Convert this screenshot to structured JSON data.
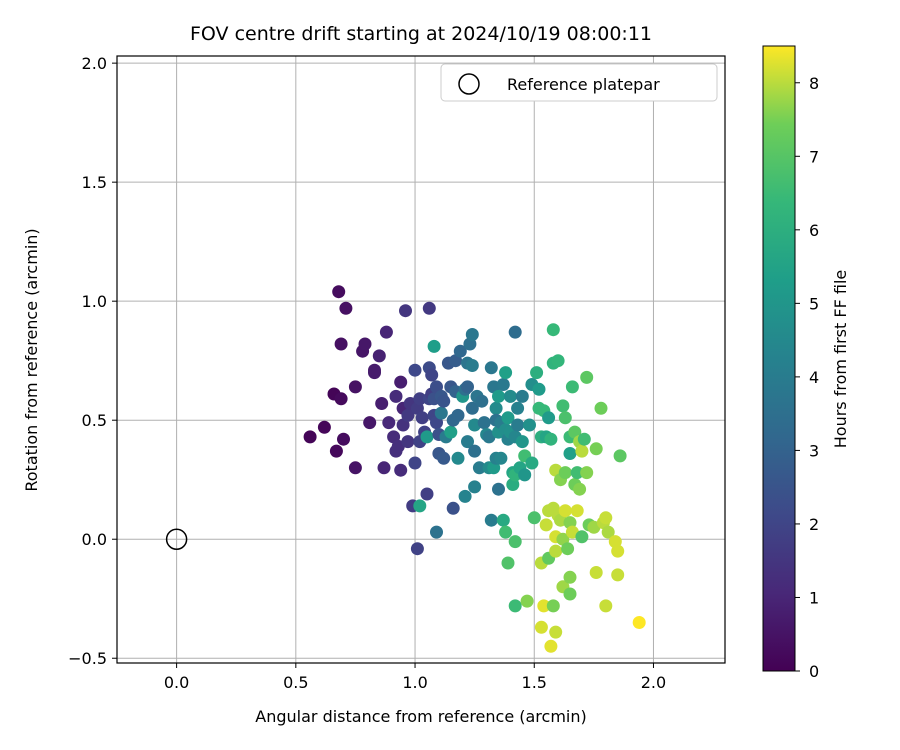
{
  "chart_data": {
    "type": "scatter",
    "title": "FOV centre drift starting at 2024/10/19 08:00:11",
    "xlabel": "Angular distance from reference (arcmin)",
    "ylabel": "Rotation from reference (arcmin)",
    "xlim": [
      -0.25,
      2.3
    ],
    "ylim": [
      -0.52,
      2.03
    ],
    "xticks": [
      0.0,
      0.5,
      1.0,
      1.5,
      2.0
    ],
    "xtick_labels": [
      "0.0",
      "0.5",
      "1.0",
      "1.5",
      "2.0"
    ],
    "yticks": [
      -0.5,
      0.0,
      0.5,
      1.0,
      1.5,
      2.0
    ],
    "ytick_labels": [
      "−0.5",
      "0.0",
      "0.5",
      "1.0",
      "1.5",
      "2.0"
    ],
    "grid": true,
    "legend": {
      "placement": "top-right",
      "entries": [
        "Reference platepar"
      ]
    },
    "reference_point": {
      "x": 0.0,
      "y": 0.0,
      "marker": "open-circle",
      "label": "Reference platepar"
    },
    "colorbar": {
      "label": "Hours from first FF file",
      "range": [
        0,
        8.5
      ],
      "ticks": [
        0,
        1,
        2,
        3,
        4,
        5,
        6,
        7,
        8
      ],
      "tick_labels": [
        "0",
        "1",
        "2",
        "3",
        "4",
        "5",
        "6",
        "7",
        "8"
      ],
      "colormap": "viridis"
    },
    "points": [
      [
        0.56,
        0.43,
        0.1
      ],
      [
        0.62,
        0.47,
        0.15
      ],
      [
        0.66,
        0.61,
        0.1
      ],
      [
        0.67,
        0.37,
        0.2
      ],
      [
        0.68,
        1.04,
        0.3
      ],
      [
        0.69,
        0.59,
        0.25
      ],
      [
        0.69,
        0.82,
        0.4
      ],
      [
        0.7,
        0.42,
        0.3
      ],
      [
        0.71,
        0.97,
        0.4
      ],
      [
        0.75,
        0.64,
        0.45
      ],
      [
        0.75,
        0.3,
        0.5
      ],
      [
        0.78,
        0.79,
        0.55
      ],
      [
        0.79,
        0.82,
        0.6
      ],
      [
        0.81,
        0.49,
        0.6
      ],
      [
        0.83,
        0.7,
        0.7
      ],
      [
        0.83,
        0.71,
        0.7
      ],
      [
        0.85,
        0.77,
        0.9
      ],
      [
        0.86,
        0.57,
        0.8
      ],
      [
        0.87,
        0.3,
        1.0
      ],
      [
        0.88,
        0.87,
        1.0
      ],
      [
        0.89,
        0.49,
        1.1
      ],
      [
        0.91,
        0.43,
        1.2
      ],
      [
        0.92,
        0.6,
        1.2
      ],
      [
        0.92,
        0.37,
        1.3
      ],
      [
        0.93,
        0.39,
        1.3
      ],
      [
        0.94,
        0.66,
        0.8
      ],
      [
        0.94,
        0.29,
        1.2
      ],
      [
        0.95,
        0.55,
        1.0
      ],
      [
        0.95,
        0.48,
        1.4
      ],
      [
        0.96,
        0.96,
        1.5
      ],
      [
        0.97,
        0.52,
        1.6
      ],
      [
        0.97,
        0.41,
        1.5
      ],
      [
        0.98,
        0.57,
        1.5
      ],
      [
        0.99,
        0.14,
        1.7
      ],
      [
        1.0,
        0.32,
        2.0
      ],
      [
        1.0,
        0.71,
        2.1
      ],
      [
        1.01,
        -0.04,
        1.9
      ],
      [
        1.01,
        0.55,
        1.7
      ],
      [
        1.02,
        0.59,
        1.8
      ],
      [
        1.02,
        0.41,
        1.9
      ],
      [
        1.02,
        0.14,
        5.6
      ],
      [
        1.03,
        0.51,
        1.8
      ],
      [
        1.04,
        0.45,
        1.9
      ],
      [
        1.05,
        0.19,
        1.8
      ],
      [
        1.05,
        0.43,
        5.2
      ],
      [
        1.06,
        0.59,
        2.0
      ],
      [
        1.06,
        0.72,
        2.2
      ],
      [
        1.06,
        0.97,
        1.6
      ],
      [
        1.07,
        0.69,
        2.0
      ],
      [
        1.07,
        0.61,
        1.8
      ],
      [
        1.08,
        0.81,
        5.3
      ],
      [
        1.08,
        0.52,
        2.0
      ],
      [
        1.08,
        0.59,
        2.4
      ],
      [
        1.09,
        0.64,
        2.3
      ],
      [
        1.09,
        0.49,
        2.1
      ],
      [
        1.09,
        0.03,
        3.6
      ],
      [
        1.1,
        0.44,
        2.4
      ],
      [
        1.1,
        0.36,
        2.6
      ],
      [
        1.11,
        0.53,
        3.8
      ],
      [
        1.11,
        0.6,
        2.6
      ],
      [
        1.12,
        0.34,
        2.7
      ],
      [
        1.12,
        0.58,
        2.5
      ],
      [
        1.13,
        0.43,
        4.0
      ],
      [
        1.14,
        0.74,
        2.6
      ],
      [
        1.15,
        0.64,
        2.6
      ],
      [
        1.15,
        0.45,
        5.4
      ],
      [
        1.16,
        0.5,
        3.2
      ],
      [
        1.16,
        0.13,
        2.4
      ],
      [
        1.17,
        0.75,
        2.8
      ],
      [
        1.17,
        0.62,
        3.0
      ],
      [
        1.18,
        0.52,
        3.2
      ],
      [
        1.18,
        0.34,
        4.5
      ],
      [
        1.19,
        0.79,
        3.2
      ],
      [
        1.2,
        0.6,
        5.0
      ],
      [
        1.21,
        0.63,
        3.5
      ],
      [
        1.21,
        0.18,
        4.3
      ],
      [
        1.22,
        0.41,
        4.0
      ],
      [
        1.22,
        0.64,
        3.0
      ],
      [
        1.22,
        0.74,
        3.7
      ],
      [
        1.23,
        0.82,
        3.5
      ],
      [
        1.24,
        0.55,
        3.4
      ],
      [
        1.24,
        0.73,
        4.0
      ],
      [
        1.24,
        0.86,
        3.8
      ],
      [
        1.25,
        0.37,
        3.5
      ],
      [
        1.25,
        0.48,
        4.5
      ],
      [
        1.25,
        0.22,
        4.2
      ],
      [
        1.26,
        0.6,
        3.7
      ],
      [
        1.27,
        0.3,
        4.0
      ],
      [
        1.28,
        0.58,
        3.5
      ],
      [
        1.29,
        0.49,
        3.6
      ],
      [
        1.3,
        0.44,
        4.4
      ],
      [
        1.31,
        0.3,
        4.6
      ],
      [
        1.31,
        0.43,
        3.9
      ],
      [
        1.32,
        0.72,
        3.8
      ],
      [
        1.32,
        0.08,
        4.0
      ],
      [
        1.33,
        0.64,
        3.8
      ],
      [
        1.33,
        0.3,
        5.2
      ],
      [
        1.34,
        0.34,
        4.2
      ],
      [
        1.34,
        0.55,
        4.6
      ],
      [
        1.34,
        0.5,
        3.6
      ],
      [
        1.35,
        0.6,
        5.2
      ],
      [
        1.35,
        0.45,
        4.8
      ],
      [
        1.35,
        0.21,
        3.6
      ],
      [
        1.36,
        0.49,
        4.0
      ],
      [
        1.36,
        0.34,
        4.4
      ],
      [
        1.37,
        0.08,
        5.8
      ],
      [
        1.37,
        0.65,
        3.9
      ],
      [
        1.38,
        0.7,
        5.4
      ],
      [
        1.38,
        0.46,
        4.7
      ],
      [
        1.38,
        0.03,
        6.6
      ],
      [
        1.39,
        0.42,
        4.2
      ],
      [
        1.39,
        -0.1,
        6.9
      ],
      [
        1.39,
        0.51,
        5.2
      ],
      [
        1.4,
        0.6,
        4.6
      ],
      [
        1.4,
        0.45,
        4.8
      ],
      [
        1.41,
        0.28,
        5.6
      ],
      [
        1.41,
        0.23,
        5.9
      ],
      [
        1.42,
        0.27,
        6.2
      ],
      [
        1.42,
        -0.01,
        6.8
      ],
      [
        1.42,
        -0.28,
        6.5
      ],
      [
        1.42,
        0.43,
        4.4
      ],
      [
        1.42,
        0.87,
        3.4
      ],
      [
        1.43,
        0.48,
        4.0
      ],
      [
        1.43,
        0.55,
        4.2
      ],
      [
        1.44,
        0.3,
        5.6
      ],
      [
        1.45,
        0.6,
        4.0
      ],
      [
        1.45,
        0.41,
        5.0
      ],
      [
        1.46,
        0.35,
        6.6
      ],
      [
        1.46,
        0.27,
        5.0
      ],
      [
        1.47,
        -0.26,
        7.6
      ],
      [
        1.48,
        0.48,
        4.8
      ],
      [
        1.49,
        0.65,
        4.7
      ],
      [
        1.49,
        0.32,
        5.8
      ],
      [
        1.5,
        0.09,
        6.8
      ],
      [
        1.51,
        0.7,
        6.0
      ],
      [
        1.52,
        0.55,
        6.4
      ],
      [
        1.52,
        0.63,
        5.2
      ],
      [
        1.53,
        0.43,
        6.0
      ],
      [
        1.53,
        -0.1,
        8.0
      ],
      [
        1.53,
        -0.37,
        8.2
      ],
      [
        1.54,
        0.54,
        6.4
      ],
      [
        1.54,
        -0.28,
        8.3
      ],
      [
        1.55,
        0.06,
        8.1
      ],
      [
        1.55,
        0.43,
        5.6
      ],
      [
        1.56,
        0.12,
        8.0
      ],
      [
        1.56,
        0.51,
        5.2
      ],
      [
        1.56,
        -0.08,
        7.2
      ],
      [
        1.57,
        0.42,
        6.2
      ],
      [
        1.57,
        -0.45,
        8.3
      ],
      [
        1.58,
        0.13,
        8.0
      ],
      [
        1.58,
        -0.28,
        7.5
      ],
      [
        1.58,
        0.88,
        6.4
      ],
      [
        1.58,
        0.74,
        6.2
      ],
      [
        1.59,
        0.01,
        8.2
      ],
      [
        1.59,
        -0.05,
        8.0
      ],
      [
        1.59,
        0.29,
        8.0
      ],
      [
        1.59,
        -0.39,
        8.1
      ],
      [
        1.6,
        0.1,
        8.0
      ],
      [
        1.6,
        0.75,
        6.3
      ],
      [
        1.61,
        0.25,
        7.6
      ],
      [
        1.61,
        0.08,
        7.9
      ],
      [
        1.62,
        -0.2,
        7.8
      ],
      [
        1.62,
        0.0,
        7.7
      ],
      [
        1.62,
        0.56,
        6.6
      ],
      [
        1.63,
        0.28,
        7.4
      ],
      [
        1.63,
        0.51,
        6.8
      ],
      [
        1.63,
        0.12,
        8.2
      ],
      [
        1.64,
        -0.04,
        7.4
      ],
      [
        1.65,
        0.43,
        6.5
      ],
      [
        1.65,
        0.36,
        5.4
      ],
      [
        1.65,
        0.07,
        7.6
      ],
      [
        1.65,
        -0.16,
        7.6
      ],
      [
        1.65,
        -0.23,
        7.4
      ],
      [
        1.66,
        0.64,
        6.5
      ],
      [
        1.66,
        0.03,
        8.1
      ],
      [
        1.67,
        0.45,
        7.1
      ],
      [
        1.67,
        0.23,
        7.4
      ],
      [
        1.68,
        0.28,
        6.6
      ],
      [
        1.68,
        0.12,
        8.2
      ],
      [
        1.69,
        0.41,
        7.8
      ],
      [
        1.69,
        0.21,
        7.6
      ],
      [
        1.7,
        0.37,
        8.0
      ],
      [
        1.7,
        0.01,
        6.9
      ],
      [
        1.71,
        0.42,
        6.6
      ],
      [
        1.72,
        0.68,
        7.1
      ],
      [
        1.72,
        0.28,
        7.6
      ],
      [
        1.73,
        0.06,
        7.4
      ],
      [
        1.75,
        0.05,
        7.8
      ],
      [
        1.76,
        0.38,
        7.5
      ],
      [
        1.76,
        -0.14,
        8.1
      ],
      [
        1.78,
        0.55,
        7.4
      ],
      [
        1.79,
        0.07,
        8.0
      ],
      [
        1.8,
        0.09,
        8.1
      ],
      [
        1.8,
        -0.28,
        8.1
      ],
      [
        1.81,
        0.03,
        7.9
      ],
      [
        1.84,
        -0.01,
        8.2
      ],
      [
        1.85,
        -0.05,
        8.2
      ],
      [
        1.85,
        -0.15,
        8.1
      ],
      [
        1.86,
        0.35,
        7.1
      ],
      [
        1.94,
        -0.35,
        8.5
      ]
    ]
  }
}
